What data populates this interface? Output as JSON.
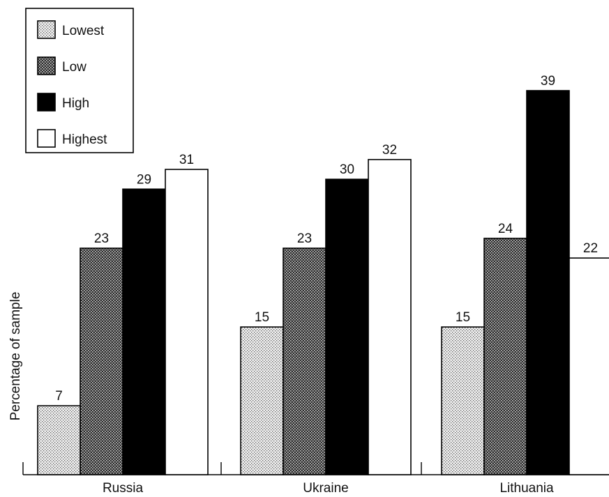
{
  "chart_data": {
    "type": "bar",
    "title": "",
    "xlabel": "",
    "ylabel": "Percentage of sample",
    "categories": [
      "Russia",
      "Ukraine",
      "Lithuania"
    ],
    "series": [
      {
        "name": "Lowest",
        "values": [
          7,
          15,
          15
        ],
        "pattern": "light-dots"
      },
      {
        "name": "Low",
        "values": [
          23,
          23,
          24
        ],
        "pattern": "dark-dots"
      },
      {
        "name": "High",
        "values": [
          29,
          30,
          39
        ],
        "pattern": "solid-black"
      },
      {
        "name": "Highest",
        "values": [
          31,
          32,
          22
        ],
        "pattern": "white"
      }
    ],
    "ylim": [
      0,
      40
    ],
    "grid": false,
    "data_labels": true,
    "legend_position": "top-left"
  }
}
